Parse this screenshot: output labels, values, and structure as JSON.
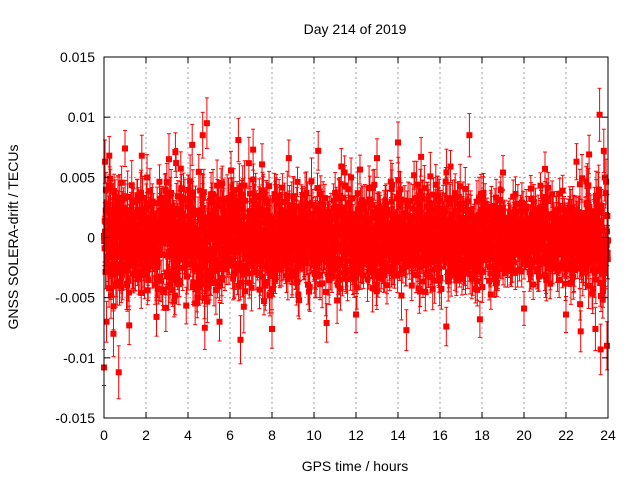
{
  "chart_data": {
    "type": "scatter",
    "title": "Day 214 of 2019",
    "xlabel": "GPS time / hours",
    "ylabel": "GNSS SOLERA-drift / TECUs",
    "xlim": [
      0,
      24
    ],
    "ylim": [
      -0.015,
      0.015
    ],
    "x_ticks": [
      0,
      2,
      4,
      6,
      8,
      10,
      12,
      14,
      16,
      18,
      20,
      22,
      24
    ],
    "x_tick_labels": [
      "0",
      "2",
      "4",
      "6",
      "8",
      "10",
      "12",
      "14",
      "16",
      "18",
      "20",
      "22",
      "24"
    ],
    "y_ticks": [
      -0.015,
      -0.01,
      -0.005,
      0,
      0.005,
      0.01,
      0.015
    ],
    "y_tick_labels": [
      "-0.015",
      "-0.01",
      "-0.005",
      "0",
      "0.005",
      "0.01",
      "0.015"
    ],
    "grid": true,
    "series": [
      {
        "name": "SOLERA-drift",
        "color": "#ff0000",
        "marker": "square",
        "error_bars": true,
        "points": [
          {
            "x": 0.0,
            "y": -0.0108,
            "err": 0.0015
          },
          {
            "x": 0.05,
            "y": 0.0063,
            "err": 0.0018
          },
          {
            "x": 0.12,
            "y": -0.007,
            "err": 0.0017
          },
          {
            "x": 0.25,
            "y": 0.0068,
            "err": 0.0016
          },
          {
            "x": 0.45,
            "y": -0.008,
            "err": 0.0019
          },
          {
            "x": 0.7,
            "y": -0.0112,
            "err": 0.0022
          },
          {
            "x": 1.0,
            "y": 0.0074,
            "err": 0.0015
          },
          {
            "x": 1.2,
            "y": -0.0073,
            "err": 0.0016
          },
          {
            "x": 1.8,
            "y": 0.0068,
            "err": 0.0017
          },
          {
            "x": 2.5,
            "y": -0.0066,
            "err": 0.0016
          },
          {
            "x": 3.4,
            "y": 0.0071,
            "err": 0.0016
          },
          {
            "x": 4.2,
            "y": 0.0077,
            "err": 0.0017
          },
          {
            "x": 4.7,
            "y": 0.0085,
            "err": 0.0019
          },
          {
            "x": 4.9,
            "y": 0.0095,
            "err": 0.0021
          },
          {
            "x": 4.8,
            "y": -0.0075,
            "err": 0.0018
          },
          {
            "x": 5.5,
            "y": -0.007,
            "err": 0.0016
          },
          {
            "x": 6.4,
            "y": 0.0081,
            "err": 0.0018
          },
          {
            "x": 6.5,
            "y": -0.0085,
            "err": 0.002
          },
          {
            "x": 7.1,
            "y": 0.0073,
            "err": 0.0017
          },
          {
            "x": 8.0,
            "y": -0.0076,
            "err": 0.0016
          },
          {
            "x": 8.8,
            "y": 0.0066,
            "err": 0.0015
          },
          {
            "x": 10.2,
            "y": 0.0072,
            "err": 0.0016
          },
          {
            "x": 10.6,
            "y": -0.0071,
            "err": 0.0016
          },
          {
            "x": 11.3,
            "y": 0.0059,
            "err": 0.0015
          },
          {
            "x": 12.0,
            "y": -0.0064,
            "err": 0.0015
          },
          {
            "x": 13.0,
            "y": 0.0066,
            "err": 0.0016
          },
          {
            "x": 14.0,
            "y": 0.0079,
            "err": 0.0017
          },
          {
            "x": 14.4,
            "y": -0.0077,
            "err": 0.0017
          },
          {
            "x": 15.1,
            "y": 0.0067,
            "err": 0.0016
          },
          {
            "x": 16.3,
            "y": -0.0074,
            "err": 0.0016
          },
          {
            "x": 17.4,
            "y": 0.0085,
            "err": 0.0018
          },
          {
            "x": 17.9,
            "y": -0.0068,
            "err": 0.0015
          },
          {
            "x": 19.0,
            "y": 0.0054,
            "err": 0.0014
          },
          {
            "x": 20.0,
            "y": -0.0059,
            "err": 0.0014
          },
          {
            "x": 21.0,
            "y": 0.0057,
            "err": 0.0014
          },
          {
            "x": 22.0,
            "y": -0.0064,
            "err": 0.0015
          },
          {
            "x": 22.5,
            "y": 0.0063,
            "err": 0.0015
          },
          {
            "x": 22.7,
            "y": -0.0078,
            "err": 0.0017
          },
          {
            "x": 23.1,
            "y": 0.0069,
            "err": 0.0016
          },
          {
            "x": 23.4,
            "y": -0.0076,
            "err": 0.0018
          },
          {
            "x": 23.6,
            "y": 0.0102,
            "err": 0.0022
          },
          {
            "x": 23.65,
            "y": -0.0093,
            "err": 0.0021
          },
          {
            "x": 23.8,
            "y": 0.0072,
            "err": 0.0018
          },
          {
            "x": 23.95,
            "y": -0.009,
            "err": 0.002
          }
        ],
        "noise_envelope": [
          {
            "x": 0,
            "amplitude": 0.003,
            "err": 0.0017
          },
          {
            "x": 1,
            "amplitude": 0.003,
            "err": 0.0017
          },
          {
            "x": 2,
            "amplitude": 0.0029,
            "err": 0.0016
          },
          {
            "x": 4,
            "amplitude": 0.003,
            "err": 0.0017
          },
          {
            "x": 6,
            "amplitude": 0.003,
            "err": 0.0017
          },
          {
            "x": 8,
            "amplitude": 0.0028,
            "err": 0.0016
          },
          {
            "x": 10,
            "amplitude": 0.0027,
            "err": 0.0016
          },
          {
            "x": 12,
            "amplitude": 0.0026,
            "err": 0.0015
          },
          {
            "x": 14,
            "amplitude": 0.0028,
            "err": 0.0016
          },
          {
            "x": 16,
            "amplitude": 0.0027,
            "err": 0.0016
          },
          {
            "x": 18,
            "amplitude": 0.0024,
            "err": 0.0014
          },
          {
            "x": 20,
            "amplitude": 0.0022,
            "err": 0.0013
          },
          {
            "x": 22,
            "amplitude": 0.0025,
            "err": 0.0015
          },
          {
            "x": 24,
            "amplitude": 0.003,
            "err": 0.0017
          }
        ]
      }
    ]
  }
}
